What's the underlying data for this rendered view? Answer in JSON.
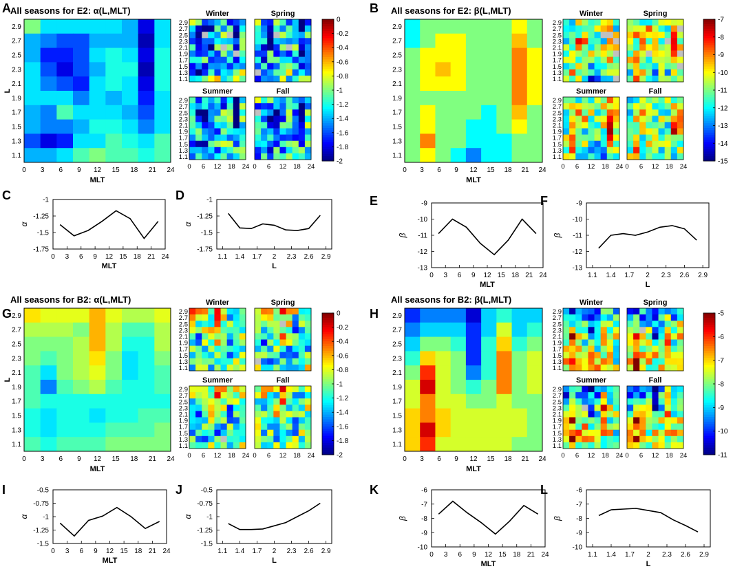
{
  "chart_data": [
    {
      "type": "heatmap",
      "panel": "A",
      "title": "All seasons for E2: α(L,MLT)",
      "xlabel": "MLT",
      "ylabel": "L",
      "xticks": [
        "0",
        "3",
        "6",
        "9",
        "12",
        "15",
        "18",
        "21",
        "24"
      ],
      "yticks": [
        "2.9",
        "2.7",
        "2.5",
        "2.3",
        "2.1",
        "1.9",
        "1.7",
        "1.5",
        "1.3",
        "1.1"
      ],
      "subplots": [
        "Winter",
        "Spring",
        "Summer",
        "Fall"
      ],
      "colorbar": {
        "min": -2,
        "max": 0,
        "ticks": [
          "0",
          "-0.2",
          "-0.4",
          "-0.6",
          "-0.8",
          "-1",
          "-1.2",
          "-1.4",
          "-1.6",
          "-1.8",
          "-2"
        ]
      },
      "cells": [
        [
          -1.0,
          -1.3,
          -1.3,
          -1.3,
          -1.3,
          -1.3,
          -1.4,
          -1.8,
          -1.3
        ],
        [
          -1.4,
          -1.5,
          -1.6,
          -1.6,
          -1.4,
          -1.4,
          -1.4,
          -1.9,
          -1.3
        ],
        [
          -1.4,
          -1.7,
          -1.7,
          -1.6,
          -1.3,
          -1.2,
          -1.3,
          -1.8,
          -1.2
        ],
        [
          -1.3,
          -1.6,
          -1.8,
          -1.6,
          -1.4,
          -1.2,
          -1.2,
          -1.9,
          -1.2
        ],
        [
          -1.3,
          -1.5,
          -1.6,
          -1.7,
          -1.3,
          -1.2,
          -1.3,
          -1.8,
          -1.2
        ],
        [
          -1.3,
          -1.3,
          -1.3,
          -1.5,
          -1.3,
          -1.4,
          -1.3,
          -1.7,
          -1.3
        ],
        [
          -1.4,
          -1.5,
          -1.1,
          -1.3,
          -1.3,
          -1.3,
          -1.4,
          -1.6,
          -1.3
        ],
        [
          -1.4,
          -1.5,
          -1.5,
          -1.4,
          -1.2,
          -1.2,
          -1.3,
          -1.5,
          -1.3
        ],
        [
          -1.6,
          -1.8,
          -1.7,
          -1.3,
          -1.3,
          -1.1,
          -1.2,
          -1.3,
          -1.1
        ],
        [
          -1.4,
          -1.4,
          -1.3,
          -1.1,
          -1.0,
          -1.1,
          -1.1,
          -1.2,
          -1.1
        ]
      ]
    },
    {
      "type": "heatmap",
      "panel": "B",
      "title": "All seasons for E2: β(L,MLT)",
      "xlabel": "MLT",
      "ylabel": "L",
      "xticks": [
        "0",
        "3",
        "6",
        "9",
        "12",
        "15",
        "18",
        "21",
        "24"
      ],
      "yticks": [
        "2.9",
        "2.7",
        "2.5",
        "2.3",
        "2.1",
        "1.9",
        "1.7",
        "1.5",
        "1.3",
        "1.1"
      ],
      "subplots": [
        "Winter",
        "Spring",
        "Summer",
        "Fall"
      ],
      "colorbar": {
        "min": -15,
        "max": -7,
        "ticks": [
          "-7",
          "-8",
          "-9",
          "-10",
          "-11",
          "-12",
          "-13",
          "-14",
          "-15"
        ]
      },
      "cells": [
        [
          -12,
          -11,
          -11,
          -11,
          -11,
          -11,
          -11,
          -10,
          -11
        ],
        [
          -12,
          -11,
          -10,
          -10,
          -11,
          -11,
          -11,
          -9.5,
          -11
        ],
        [
          -11,
          -10,
          -10,
          -10,
          -11,
          -11,
          -11,
          -9,
          -10
        ],
        [
          -11,
          -10,
          -9.5,
          -10,
          -11,
          -11,
          -11,
          -9,
          -10
        ],
        [
          -11,
          -10,
          -10,
          -10,
          -11,
          -11,
          -11,
          -9,
          -10
        ],
        [
          -11,
          -11,
          -11,
          -11,
          -11,
          -11,
          -11,
          -9,
          -10
        ],
        [
          -11,
          -10,
          -11,
          -11,
          -11,
          -12,
          -11,
          -9.5,
          -11
        ],
        [
          -11,
          -10,
          -11,
          -11,
          -12,
          -12,
          -11,
          -10,
          -11
        ],
        [
          -11,
          -9,
          -11,
          -11,
          -12,
          -12,
          -12,
          -11,
          -11
        ],
        [
          -11,
          -10,
          -11,
          -12,
          -13,
          -12,
          -12,
          -11,
          -11
        ]
      ]
    },
    {
      "type": "line",
      "panel": "C",
      "xlabel": "MLT",
      "ylabel": "α",
      "xticks": [
        "0",
        "3",
        "6",
        "9",
        "12",
        "15",
        "18",
        "21",
        "24"
      ],
      "yticks": [
        "-1",
        "-1.25",
        "-1.5",
        "-1.75"
      ],
      "xlim": [
        0,
        24
      ],
      "ylim": [
        -1.75,
        -1
      ],
      "x": [
        1.5,
        4.5,
        7.5,
        10.5,
        13.5,
        16.5,
        19.5,
        22.5
      ],
      "y": [
        -1.38,
        -1.55,
        -1.47,
        -1.33,
        -1.17,
        -1.29,
        -1.59,
        -1.33
      ]
    },
    {
      "type": "line",
      "panel": "D",
      "xlabel": "L",
      "ylabel": "α",
      "xticks": [
        "1.1",
        "1.4",
        "1.7",
        "2",
        "2.3",
        "2.6",
        "2.9"
      ],
      "yticks": [
        "-1",
        "-1.25",
        "-1.5",
        "-1.75"
      ],
      "xlim": [
        1.0,
        3.0
      ],
      "ylim": [
        -1.75,
        -1
      ],
      "x": [
        1.2,
        1.4,
        1.6,
        1.8,
        2.0,
        2.2,
        2.4,
        2.6,
        2.8
      ],
      "y": [
        -1.21,
        -1.43,
        -1.44,
        -1.37,
        -1.39,
        -1.46,
        -1.47,
        -1.44,
        -1.24
      ]
    },
    {
      "type": "line",
      "panel": "E",
      "xlabel": "MLT",
      "ylabel": "β",
      "xticks": [
        "0",
        "3",
        "6",
        "9",
        "12",
        "15",
        "18",
        "21",
        "24"
      ],
      "yticks": [
        "-9",
        "-10",
        "-11",
        "-12",
        "-13"
      ],
      "xlim": [
        0,
        24
      ],
      "ylim": [
        -13,
        -9
      ],
      "x": [
        1.5,
        4.5,
        7.5,
        10.5,
        13.5,
        16.5,
        19.5,
        22.5
      ],
      "y": [
        -10.9,
        -10.0,
        -10.5,
        -11.5,
        -12.2,
        -11.3,
        -10.0,
        -10.9
      ]
    },
    {
      "type": "line",
      "panel": "F",
      "xlabel": "L",
      "ylabel": "β",
      "xticks": [
        "1.1",
        "1.4",
        "1.7",
        "2",
        "2.3",
        "2.6",
        "2.9"
      ],
      "yticks": [
        "-9",
        "-10",
        "-11",
        "-12",
        "-13"
      ],
      "xlim": [
        1.0,
        3.0
      ],
      "ylim": [
        -13,
        -9
      ],
      "x": [
        1.2,
        1.4,
        1.6,
        1.8,
        2.0,
        2.2,
        2.4,
        2.6,
        2.8
      ],
      "y": [
        -11.8,
        -11.0,
        -10.9,
        -11.0,
        -10.8,
        -10.5,
        -10.4,
        -10.6,
        -11.3
      ]
    },
    {
      "type": "heatmap",
      "panel": "G",
      "title": "All seasons for B2: α(L,MLT)",
      "xlabel": "MLT",
      "ylabel": "L",
      "xticks": [
        "0",
        "3",
        "6",
        "9",
        "12",
        "15",
        "18",
        "21",
        "24"
      ],
      "yticks": [
        "2.9",
        "2.7",
        "2.5",
        "2.3",
        "2.1",
        "1.9",
        "1.7",
        "1.5",
        "1.3",
        "1.1"
      ],
      "subplots": [
        "Winter",
        "Spring",
        "Summer",
        "Fall"
      ],
      "colorbar": {
        "min": -2,
        "max": 0,
        "ticks": [
          "0",
          "-0.2",
          "-0.4",
          "-0.6",
          "-0.8",
          "-1",
          "-1.2",
          "-1.4",
          "-1.6",
          "-1.8",
          "-2"
        ]
      },
      "cells": [
        [
          -0.7,
          -0.8,
          -0.8,
          -0.8,
          -0.6,
          -0.8,
          -0.9,
          -0.9,
          -0.8
        ],
        [
          -0.9,
          -0.9,
          -0.9,
          -1.0,
          -0.6,
          -0.9,
          -1.1,
          -1.1,
          -0.9
        ],
        [
          -1.0,
          -1.0,
          -1.0,
          -0.9,
          -0.6,
          -0.9,
          -1.2,
          -1.2,
          -0.9
        ],
        [
          -1.0,
          -1.1,
          -1.0,
          -0.9,
          -0.7,
          -1.0,
          -1.3,
          -1.2,
          -1.0
        ],
        [
          -1.1,
          -1.3,
          -1.0,
          -0.9,
          -0.8,
          -1.0,
          -1.3,
          -1.2,
          -1.1
        ],
        [
          -1.1,
          -1.5,
          -1.1,
          -1.0,
          -0.9,
          -1.1,
          -1.2,
          -1.2,
          -1.1
        ],
        [
          -1.1,
          -1.2,
          -1.2,
          -1.2,
          -1.2,
          -1.2,
          -1.2,
          -1.2,
          -1.2
        ],
        [
          -1.2,
          -1.3,
          -1.2,
          -1.2,
          -1.3,
          -1.2,
          -1.2,
          -1.1,
          -1.1
        ],
        [
          -1.2,
          -1.3,
          -1.2,
          -1.2,
          -1.2,
          -1.1,
          -1.1,
          -1.1,
          -1.0
        ],
        [
          -1.1,
          -1.2,
          -1.1,
          -1.1,
          -1.1,
          -1.0,
          -1.0,
          -1.0,
          -1.0
        ]
      ]
    },
    {
      "type": "heatmap",
      "panel": "H",
      "title": "All seasons for B2: β(L,MLT)",
      "xlabel": "MLT",
      "ylabel": "L",
      "xticks": [
        "0",
        "3",
        "6",
        "9",
        "12",
        "15",
        "18",
        "21",
        "24"
      ],
      "yticks": [
        "2.9",
        "2.7",
        "2.5",
        "2.3",
        "2.1",
        "1.9",
        "1.7",
        "1.5",
        "1.3",
        "1.1"
      ],
      "subplots": [
        "Winter",
        "Spring",
        "Summer",
        "Fall"
      ],
      "colorbar": {
        "min": -11,
        "max": -5,
        "ticks": [
          "-5",
          "-6",
          "-7",
          "-8",
          "-9",
          "-10",
          "-11"
        ]
      },
      "cells": [
        [
          -10,
          -9.5,
          -9.5,
          -9.5,
          -10.5,
          -9,
          -8.5,
          -9,
          -9
        ],
        [
          -9.5,
          -9,
          -9,
          -9,
          -10,
          -9,
          -7.5,
          -9,
          -8.5
        ],
        [
          -9,
          -8,
          -8,
          -8.5,
          -10,
          -8.5,
          -7,
          -8.5,
          -8
        ],
        [
          -8.5,
          -7,
          -7.5,
          -8,
          -10,
          -8.5,
          -6.5,
          -8,
          -7.5
        ],
        [
          -8,
          -6,
          -7.5,
          -8,
          -9.5,
          -8.5,
          -6.5,
          -8,
          -7.5
        ],
        [
          -7.5,
          -5.5,
          -7.5,
          -8,
          -8.5,
          -8,
          -6.5,
          -8,
          -7.5
        ],
        [
          -7.5,
          -6.5,
          -7.5,
          -7.5,
          -8,
          -8,
          -7.5,
          -8,
          -8
        ],
        [
          -7,
          -6.5,
          -7,
          -7.5,
          -7.5,
          -7.5,
          -7.5,
          -7.5,
          -8
        ],
        [
          -7,
          -5.5,
          -7,
          -7.5,
          -7.5,
          -7.5,
          -7.5,
          -7.5,
          -8
        ],
        [
          -7,
          -6,
          -7.5,
          -7.5,
          -7.5,
          -7.5,
          -7.5,
          -8,
          -8
        ]
      ]
    },
    {
      "type": "line",
      "panel": "I",
      "xlabel": "MLT",
      "ylabel": "α",
      "xticks": [
        "0",
        "3",
        "6",
        "9",
        "12",
        "15",
        "18",
        "21",
        "24"
      ],
      "yticks": [
        "-0.5",
        "-0.75",
        "-1",
        "-1.25",
        "-1.5"
      ],
      "xlim": [
        0,
        24
      ],
      "ylim": [
        -1.5,
        -0.5
      ],
      "x": [
        1.5,
        4.5,
        7.5,
        10.5,
        13.5,
        16.5,
        19.5,
        22.5
      ],
      "y": [
        -1.12,
        -1.36,
        -1.07,
        -0.99,
        -0.83,
        -1.0,
        -1.22,
        -1.09
      ]
    },
    {
      "type": "line",
      "panel": "J",
      "xlabel": "L",
      "ylabel": "α",
      "xticks": [
        "1.1",
        "1.4",
        "1.7",
        "2",
        "2.3",
        "2.6",
        "2.9"
      ],
      "yticks": [
        "-0.5",
        "-0.75",
        "-1",
        "-1.25",
        "-1.5"
      ],
      "xlim": [
        1.0,
        3.0
      ],
      "ylim": [
        -1.5,
        -0.5
      ],
      "x": [
        1.2,
        1.4,
        1.6,
        1.8,
        2.0,
        2.2,
        2.4,
        2.6,
        2.8
      ],
      "y": [
        -1.13,
        -1.24,
        -1.24,
        -1.23,
        -1.17,
        -1.11,
        -1.0,
        -0.89,
        -0.75
      ]
    },
    {
      "type": "line",
      "panel": "K",
      "xlabel": "MLT",
      "ylabel": "β",
      "xticks": [
        "0",
        "3",
        "6",
        "9",
        "12",
        "15",
        "18",
        "21",
        "24"
      ],
      "yticks": [
        "-6",
        "-7",
        "-8",
        "-9",
        "-10"
      ],
      "xlim": [
        0,
        24
      ],
      "ylim": [
        -10,
        -6
      ],
      "x": [
        1.5,
        4.5,
        7.5,
        10.5,
        13.5,
        16.5,
        19.5,
        22.5
      ],
      "y": [
        -7.7,
        -6.8,
        -7.6,
        -8.3,
        -9.1,
        -8.2,
        -7.1,
        -7.7
      ]
    },
    {
      "type": "line",
      "panel": "L",
      "xlabel": "L",
      "ylabel": "β",
      "xticks": [
        "1.1",
        "1.4",
        "1.7",
        "2",
        "2.3",
        "2.6",
        "2.9"
      ],
      "yticks": [
        "-6",
        "-7",
        "-8",
        "-9",
        "-10"
      ],
      "xlim": [
        1.0,
        3.0
      ],
      "ylim": [
        -10,
        -6
      ],
      "x": [
        1.2,
        1.4,
        1.6,
        1.8,
        2.0,
        2.2,
        2.4,
        2.6,
        2.8
      ],
      "y": [
        -7.8,
        -7.4,
        -7.35,
        -7.3,
        -7.45,
        -7.6,
        -8.1,
        -8.5,
        -8.95
      ]
    }
  ]
}
